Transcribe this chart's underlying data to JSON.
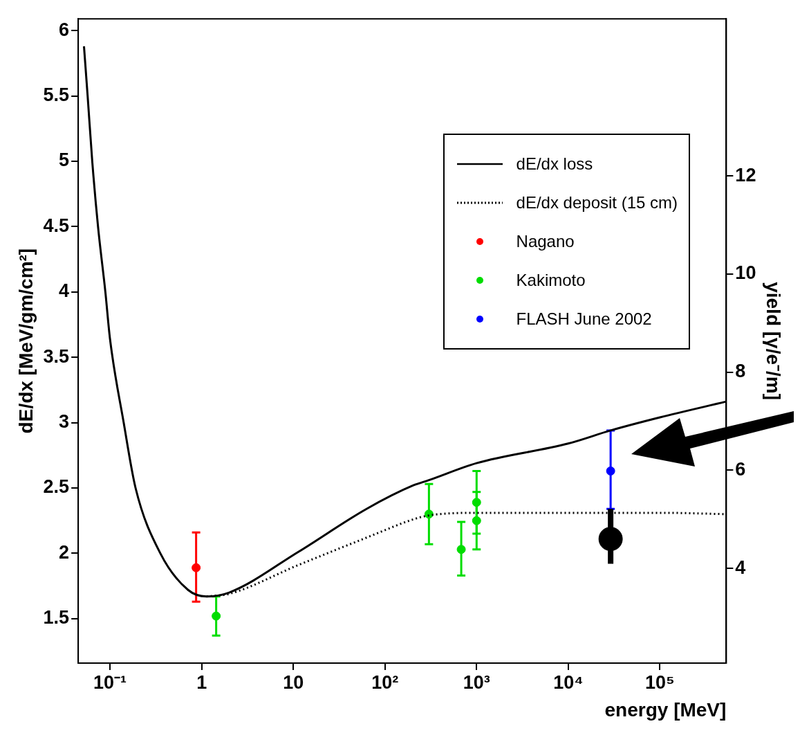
{
  "chart_data": {
    "type": "line",
    "xlabel": "energy [MeV]",
    "ylabel": "dE/dx [MeV/gm/cm²]",
    "y2label": "yield [γ/e⁻/m]",
    "log": "x",
    "xlim": [
      0.045,
      530000
    ],
    "xticks": [
      {
        "value": 0.1,
        "label": "10⁻¹"
      },
      1,
      10,
      {
        "value": 100,
        "label": "10²"
      },
      {
        "value": 1000,
        "label": "10³"
      },
      {
        "value": 10000,
        "label": "10⁴"
      },
      {
        "value": 100000,
        "label": "10⁵"
      }
    ],
    "ylim": [
      1.16,
      6.09
    ],
    "yticks": [
      1.5,
      2,
      2.5,
      3,
      3.5,
      4,
      4.5,
      5,
      5.5,
      6
    ],
    "y2lim": [
      2.07,
      15.2
    ],
    "y2ticks": [
      4,
      6,
      8,
      10,
      12
    ],
    "legend": "top right",
    "marker": "circle",
    "series": [
      {
        "name": "dE/dx loss",
        "marker": "none",
        "line_style": "solid",
        "color": "#000000",
        "x": [
          0.052,
          0.057,
          0.064,
          0.074,
          0.089,
          0.1,
          0.141,
          0.19,
          0.354,
          0.71,
          1.13,
          2.0,
          11.3,
          63,
          204,
          302,
          1000,
          10000,
          29000,
          100000,
          520000
        ],
        "values": [
          5.88,
          5.5,
          5.0,
          4.5,
          4.0,
          3.64,
          3.0,
          2.5,
          2.0,
          1.72,
          1.67,
          1.7,
          2.01,
          2.34,
          2.52,
          2.56,
          2.69,
          2.84,
          2.94,
          3.04,
          3.16
        ]
      },
      {
        "name": "dE/dx deposit (15 cm)",
        "marker": "none",
        "line_style": "dotted",
        "color": "#000000",
        "x": [
          1.13,
          2.0,
          11.3,
          63,
          204,
          302,
          1000,
          10000,
          100000,
          520000
        ],
        "values": [
          1.67,
          1.69,
          1.91,
          2.12,
          2.26,
          2.29,
          2.31,
          2.31,
          2.31,
          2.3
        ]
      },
      {
        "name": "Nagano",
        "type": "scatter",
        "color": "#ff0000",
        "x": [
          0.87
        ],
        "values": [
          1.89
        ],
        "errors": [
          [
            1.63,
            2.16
          ]
        ]
      },
      {
        "name": "Kakimoto",
        "type": "scatter",
        "color": "#00dd00",
        "x": [
          1.44,
          302,
          680,
          1000,
          1000
        ],
        "values": [
          1.52,
          2.3,
          2.03,
          2.39,
          2.25
        ],
        "errors": [
          [
            1.37,
            1.67
          ],
          [
            2.07,
            2.53
          ],
          [
            1.83,
            2.24
          ],
          [
            2.15,
            2.63
          ],
          [
            2.03,
            2.47
          ]
        ]
      },
      {
        "name": "FLASH June 2002",
        "type": "scatter",
        "color": "#0000ff",
        "x": [
          29000
        ],
        "values": [
          2.63
        ],
        "errors": [
          [
            2.34,
            2.94
          ]
        ]
      },
      {
        "type": "scatter",
        "color": "#000000",
        "x": [
          29000
        ],
        "values": [
          2.11
        ],
        "errors": [
          [
            1.92,
            2.34
          ]
        ]
      }
    ]
  }
}
